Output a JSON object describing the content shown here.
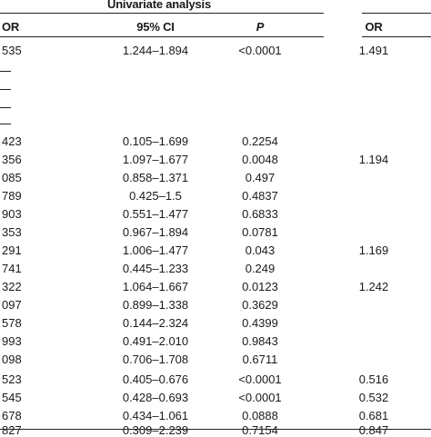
{
  "header": {
    "group_title": "Univariate analysis",
    "col_or": "OR",
    "col_ci": "95% CI",
    "col_p": "P",
    "col_or2": "OR"
  },
  "rows": [
    {
      "or": "535",
      "ci": "1.244–1.894",
      "p": "<0.0001",
      "or2": "1.491"
    },
    {
      "or": "—",
      "ci": "",
      "p": "",
      "or2": ""
    },
    {
      "or": "—",
      "ci": "",
      "p": "",
      "or2": ""
    },
    {
      "or": "—",
      "ci": "",
      "p": "",
      "or2": ""
    },
    {
      "or": "—",
      "ci": "",
      "p": "",
      "or2": ""
    },
    {
      "or": "423",
      "ci": "0.105–1.699",
      "p": "0.2254",
      "or2": ""
    },
    {
      "or": "356",
      "ci": "1.097–1.677",
      "p": "0.0048",
      "or2": "1.194"
    },
    {
      "or": "085",
      "ci": "0.858–1.371",
      "p": "0.497",
      "or2": ""
    },
    {
      "or": "789",
      "ci": "0.425–1.5",
      "p": "0.4837",
      "or2": ""
    },
    {
      "or": "903",
      "ci": "0.551–1.477",
      "p": "0.6833",
      "or2": ""
    },
    {
      "or": "353",
      "ci": "0.967–1.894",
      "p": "0.0781",
      "or2": ""
    },
    {
      "or": "291",
      "ci": "1.006–1.477",
      "p": "0.043",
      "or2": "1.169"
    },
    {
      "or": "741",
      "ci": "0.445–1.233",
      "p": "0.249",
      "or2": ""
    },
    {
      "or": "322",
      "ci": "1.064–1.667",
      "p": "0.0123",
      "or2": "1.242"
    },
    {
      "or": "097",
      "ci": "0.899–1.338",
      "p": "0.3629",
      "or2": ""
    },
    {
      "or": "578",
      "ci": "0.144–2.324",
      "p": "0.4399",
      "or2": ""
    },
    {
      "or": "993",
      "ci": "0.491–2.010",
      "p": "0.9843",
      "or2": ""
    },
    {
      "or": "098",
      "ci": "0.706–1.708",
      "p": "0.6711",
      "or2": ""
    },
    {
      "or": "",
      "ci": "",
      "p": "",
      "or2": ""
    },
    {
      "or": "523",
      "ci": "0.405–0.676",
      "p": "<0.0001",
      "or2": "0.516"
    },
    {
      "or": "545",
      "ci": "0.428–0.693",
      "p": "<0.0001",
      "or2": "0.532"
    },
    {
      "or": "678",
      "ci": "0.434–1.061",
      "p": "0.0888",
      "or2": "0.681"
    },
    {
      "or": "827",
      "ci": "0.309–2.239",
      "p": "0.7154",
      "or2": "0.847"
    }
  ]
}
